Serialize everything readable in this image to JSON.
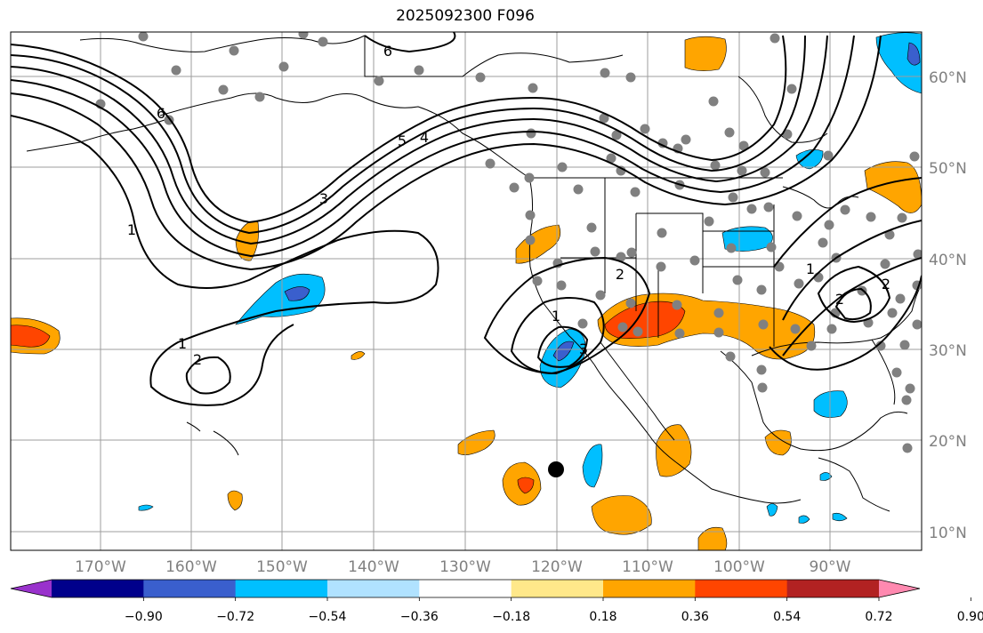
{
  "title": "2025092300 F096",
  "lon_ticks": [
    "170°W",
    "160°W",
    "150°W",
    "140°W",
    "130°W",
    "120°W",
    "110°W",
    "100°W",
    "90°W"
  ],
  "lat_ticks": [
    "60°N",
    "50°N",
    "40°N",
    "30°N",
    "20°N",
    "10°N"
  ],
  "colorbar": {
    "ticks": [
      "−0.90",
      "−0.72",
      "−0.54",
      "−0.36",
      "−0.18",
      "0.18",
      "0.36",
      "0.54",
      "0.72",
      "0.90"
    ],
    "colors": [
      "#9932cc",
      "#00008b",
      "#3a5fcd",
      "#00bfff",
      "#b0e2ff",
      "#ffffff",
      "#ffe88a",
      "#ffa500",
      "#ff4500",
      "#b22222",
      "#ff89b0"
    ]
  },
  "contour_labels": [
    "6",
    "6",
    "5",
    "4",
    "3",
    "1",
    "1",
    "2",
    "2",
    "1",
    "3",
    "2",
    "1",
    "2"
  ],
  "colors": {
    "negative_strong": "#3a5fcd",
    "negative_mid": "#00bfff",
    "positive_mid": "#ffa500",
    "positive_strong": "#ff4500",
    "station_dot": "#808080",
    "marker": "#000000"
  }
}
